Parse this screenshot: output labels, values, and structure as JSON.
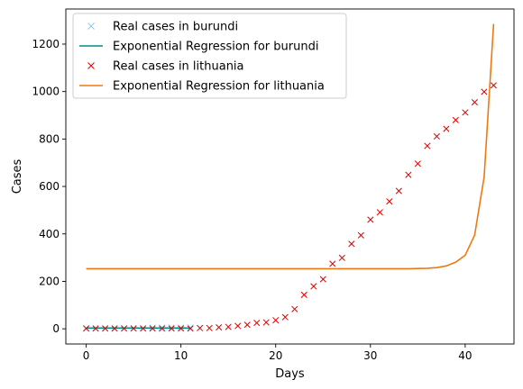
{
  "chart_data": {
    "type": "line",
    "title": "",
    "xlabel": "Days",
    "ylabel": "Cases",
    "xlim": [
      -2.15,
      45.15
    ],
    "ylim": [
      -64,
      1348
    ],
    "xticks": [
      0,
      10,
      20,
      30,
      40
    ],
    "yticks": [
      0,
      200,
      400,
      600,
      800,
      1000,
      1200
    ],
    "grid": false,
    "legend_placement": "top-left",
    "series": [
      {
        "name": "Real cases in burundi",
        "kind": "scatter",
        "marker": "x",
        "color": "#87ceeb",
        "x": [
          0,
          1,
          2,
          3,
          4,
          5,
          6,
          7,
          8,
          9,
          10,
          11
        ],
        "y": [
          3,
          3,
          3,
          3,
          3,
          3,
          3,
          5,
          5,
          5,
          5,
          5
        ]
      },
      {
        "name": "Exponential Regression for burundi",
        "kind": "line",
        "color": "#008b8b",
        "x": [
          0,
          1,
          2,
          3,
          4,
          5,
          6,
          7,
          8,
          9,
          10,
          11
        ],
        "y": [
          3,
          3,
          3,
          3,
          3,
          3,
          3,
          3,
          3,
          3,
          3,
          3
        ]
      },
      {
        "name": "Real cases in lithuania",
        "kind": "scatter",
        "marker": "x",
        "color": "#e00000",
        "x": [
          0,
          1,
          2,
          3,
          4,
          5,
          6,
          7,
          8,
          9,
          10,
          11,
          12,
          13,
          14,
          15,
          16,
          17,
          18,
          19,
          20,
          21,
          22,
          23,
          24,
          25,
          26,
          27,
          28,
          29,
          30,
          31,
          32,
          33,
          34,
          35,
          36,
          37,
          38,
          39,
          40,
          41,
          42,
          43
        ],
        "y": [
          1,
          1,
          1,
          1,
          1,
          1,
          1,
          1,
          1,
          1,
          1,
          1,
          3,
          3,
          6,
          8,
          12,
          17,
          25,
          27,
          36,
          49,
          83,
          143,
          179,
          209,
          274,
          299,
          358,
          394,
          460,
          491,
          537,
          581,
          649,
          696,
          771,
          811,
          843,
          880,
          912,
          955,
          999,
          1026
        ]
      },
      {
        "name": "Exponential Regression for lithuania",
        "kind": "line",
        "color": "#f07810",
        "x": [
          0,
          1,
          2,
          3,
          4,
          5,
          6,
          7,
          8,
          9,
          10,
          11,
          12,
          13,
          14,
          15,
          16,
          17,
          18,
          19,
          20,
          21,
          22,
          23,
          24,
          25,
          26,
          27,
          28,
          29,
          30,
          31,
          32,
          33,
          34,
          35,
          36,
          37,
          38,
          39,
          40,
          41,
          42,
          43
        ],
        "y": [
          253,
          253,
          253,
          253,
          253,
          253,
          253,
          253,
          253,
          253,
          253,
          253,
          253,
          253,
          253,
          253,
          253,
          253,
          253,
          253,
          253,
          253,
          253,
          253,
          253,
          253,
          253,
          253,
          253,
          253,
          253,
          253,
          253,
          253,
          253,
          254,
          255,
          258,
          265,
          281,
          310,
          395,
          640,
          1285
        ]
      }
    ]
  }
}
